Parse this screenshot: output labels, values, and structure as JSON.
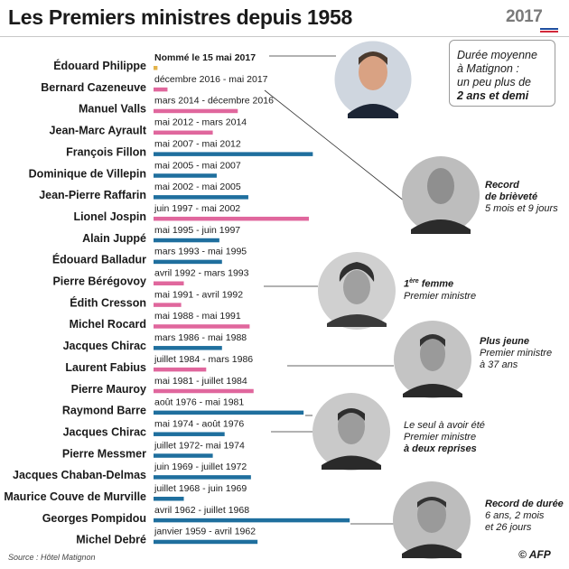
{
  "title": "Les Premiers ministres depuis 1958",
  "badge": {
    "year": "2017"
  },
  "avg_box": {
    "line1": "Durée moyenne",
    "line2": "à Matignon :",
    "line3": "un peu plus de",
    "line4": "2 ans et demi"
  },
  "notes": {
    "record_brevete_1": "Record",
    "record_brevete_2": "de brièveté",
    "record_brevete_3": "5 mois et 9 jours",
    "premiere_femme_sup": "ère",
    "premiere_femme_1": "1",
    "premiere_femme_2": "femme",
    "premiere_femme_3": "Premier ministre",
    "plus_jeune_1": "Plus jeune",
    "plus_jeune_2": "Premier ministre",
    "plus_jeune_3": "à 37 ans",
    "deux_reprises_1": "Le seul à avoir été",
    "deux_reprises_2": "Premier ministre",
    "deux_reprises_3": "à deux reprises",
    "record_duree_1": "Record de durée",
    "record_duree_2": "6 ans, 2 mois",
    "record_duree_3": "et 26 jours"
  },
  "source": "Source : Hôtel Matignon",
  "credit": "© AFP",
  "colors": {
    "blue": "#1f6f9e",
    "pink": "#e0679d",
    "gold": "#e3b34a",
    "text": "#1a1a1a",
    "line": "#333333"
  },
  "chart_data": {
    "type": "bar",
    "orientation": "horizontal",
    "value_unit": "months in office (bar length)",
    "rows": [
      {
        "name": "Édouard Philippe",
        "period": "Nommé le 15 mai 2017",
        "months": 1.5,
        "color": "gold"
      },
      {
        "name": "Bernard Cazeneuve",
        "period": "décembre 2016 - mai 2017",
        "months": 5.3,
        "color": "pink"
      },
      {
        "name": "Manuel Valls",
        "period": "mars 2014 - décembre 2016",
        "months": 32,
        "color": "pink"
      },
      {
        "name": "Jean-Marc Ayrault",
        "period": "mai 2012 - mars 2014",
        "months": 22.5,
        "color": "pink"
      },
      {
        "name": "François Fillon",
        "period": "mai 2007 - mai 2012",
        "months": 60.5,
        "color": "blue"
      },
      {
        "name": "Dominique de Villepin",
        "period": "mai 2005 - mai 2007",
        "months": 24,
        "color": "blue"
      },
      {
        "name": "Jean-Pierre Raffarin",
        "period": "mai 2002 - mai 2005",
        "months": 36,
        "color": "blue"
      },
      {
        "name": "Lionel Jospin",
        "period": "juin 1997 - mai 2002",
        "months": 59,
        "color": "pink"
      },
      {
        "name": "Alain Juppé",
        "period": "mai 1995 - juin 1997",
        "months": 25,
        "color": "blue"
      },
      {
        "name": "Édouard Balladur",
        "period": "mars 1993 - mai 1995",
        "months": 26,
        "color": "blue"
      },
      {
        "name": "Pierre Bérégovoy",
        "period": "avril 1992 - mars 1993",
        "months": 11.5,
        "color": "pink"
      },
      {
        "name": "Édith Cresson",
        "period": "mai 1991 - avril 1992",
        "months": 10.5,
        "color": "pink"
      },
      {
        "name": "Michel Rocard",
        "period": "mai 1988 - mai 1991",
        "months": 36.5,
        "color": "pink"
      },
      {
        "name": "Jacques Chirac",
        "period": "mars 1986 - mai 1988",
        "months": 26,
        "color": "blue"
      },
      {
        "name": "Laurent Fabius",
        "period": "juillet 1984 - mars 1986",
        "months": 20,
        "color": "pink"
      },
      {
        "name": "Pierre Mauroy",
        "period": "mai 1981 - juillet 1984",
        "months": 38,
        "color": "pink"
      },
      {
        "name": "Raymond Barre",
        "period": "août 1976 - mai 1981",
        "months": 57,
        "color": "blue"
      },
      {
        "name": "Jacques Chirac",
        "period": "mai 1974 - août 1976",
        "months": 27,
        "color": "blue"
      },
      {
        "name": "Pierre Messmer",
        "period": "juillet 1972- mai 1974",
        "months": 22.5,
        "color": "blue"
      },
      {
        "name": "Jacques Chaban-Delmas",
        "period": "juin 1969 - juillet 1972",
        "months": 37,
        "color": "blue"
      },
      {
        "name": "Maurice Couve de Murville",
        "period": "juillet 1968 - juin 1969",
        "months": 11.5,
        "color": "blue"
      },
      {
        "name": "Georges Pompidou",
        "period": "avril 1962 - juillet 1968",
        "months": 74.5,
        "color": "blue"
      },
      {
        "name": "Michel Debré",
        "period": "janvier 1959 - avril 1962",
        "months": 39.5,
        "color": "blue"
      }
    ]
  }
}
